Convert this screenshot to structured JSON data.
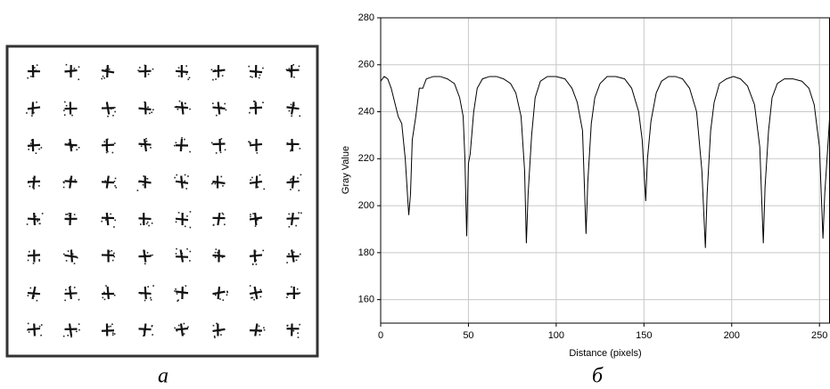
{
  "image_panel": {
    "label": "а"
  },
  "chart_data": {
    "type": "line",
    "panel_label": "б",
    "x_label": "Distance (pixels)",
    "y_label": "Gray Value",
    "xlim": [
      0,
      256
    ],
    "ylim": [
      150,
      280
    ],
    "xticks": [
      0,
      50,
      100,
      150,
      200,
      250
    ],
    "yticks": [
      160,
      180,
      200,
      220,
      240,
      260,
      280
    ],
    "grid": true,
    "color": "#000000",
    "x": [
      0,
      2,
      4,
      6,
      8,
      10,
      12,
      14,
      16,
      17,
      18,
      20,
      22,
      24,
      26,
      30,
      34,
      38,
      42,
      45,
      47,
      48,
      49,
      50,
      51,
      53,
      55,
      58,
      62,
      66,
      70,
      74,
      77,
      80,
      82,
      83,
      84,
      86,
      88,
      91,
      95,
      100,
      105,
      109,
      112,
      115,
      117,
      118,
      120,
      122,
      125,
      129,
      134,
      139,
      143,
      147,
      149,
      151,
      152,
      154,
      157,
      160,
      164,
      168,
      172,
      176,
      180,
      183,
      185,
      186,
      188,
      190,
      193,
      197,
      201,
      205,
      209,
      213,
      216,
      218,
      219,
      221,
      223,
      226,
      230,
      235,
      240,
      244,
      247,
      250,
      252,
      253,
      255,
      256
    ],
    "values": [
      253,
      255,
      254,
      250,
      244,
      238,
      235,
      220,
      196,
      205,
      228,
      238,
      250,
      250,
      254,
      255,
      255,
      254,
      252,
      246,
      238,
      220,
      187,
      218,
      222,
      240,
      250,
      254,
      255,
      255,
      254,
      252,
      248,
      238,
      215,
      184,
      205,
      230,
      246,
      253,
      255,
      255,
      254,
      250,
      244,
      232,
      188,
      210,
      235,
      246,
      252,
      255,
      255,
      254,
      250,
      240,
      228,
      202,
      220,
      236,
      248,
      253,
      255,
      255,
      254,
      250,
      240,
      215,
      182,
      205,
      232,
      244,
      252,
      254,
      255,
      254,
      251,
      243,
      225,
      184,
      208,
      232,
      246,
      252,
      254,
      254,
      253,
      250,
      243,
      225,
      186,
      205,
      228,
      240
    ]
  }
}
